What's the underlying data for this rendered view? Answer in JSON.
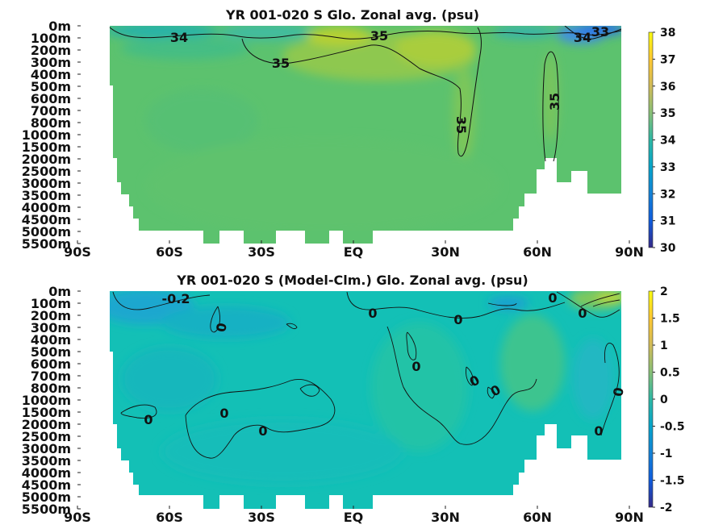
{
  "chart_data": [
    {
      "type": "heatmap",
      "title": "YR 001-020 S Glo. Zonal avg. (psu)",
      "x_ticks": [
        "90S",
        "60S",
        "30S",
        "EQ",
        "30N",
        "60N",
        "90N"
      ],
      "x_range": [
        -90,
        90
      ],
      "y_ticks": [
        "0m",
        "100m",
        "200m",
        "300m",
        "400m",
        "500m",
        "600m",
        "700m",
        "800m",
        "1000m",
        "1500m",
        "2000m",
        "2500m",
        "3000m",
        "3500m",
        "4000m",
        "4500m",
        "5000m",
        "5500m"
      ],
      "colorbar": {
        "ticks": [
          "30",
          "31",
          "32",
          "33",
          "34",
          "35",
          "36",
          "37",
          "38"
        ],
        "range": [
          30,
          38
        ],
        "colormap": "parula"
      },
      "contour_labels": [
        "34",
        "35",
        "35",
        "35",
        "35",
        "34",
        "33"
      ],
      "colors": {
        "background": "#5cc26e",
        "fresh_surface": "#19a5c9",
        "salty_core": "#9fcc44",
        "max_salinity": "#b6d033",
        "land": "#ffffff"
      }
    },
    {
      "type": "heatmap",
      "title": "YR 001-020 S (Model-Clm.) Glo. Zonal avg. (psu)",
      "x_ticks": [
        "90S",
        "60S",
        "30S",
        "EQ",
        "30N",
        "60N",
        "90N"
      ],
      "x_range": [
        -90,
        90
      ],
      "y_ticks": [
        "0m",
        "100m",
        "200m",
        "300m",
        "400m",
        "500m",
        "600m",
        "700m",
        "800m",
        "1000m",
        "1500m",
        "2000m",
        "2500m",
        "3000m",
        "3500m",
        "4000m",
        "4500m",
        "5000m",
        "5500m"
      ],
      "colorbar": {
        "ticks": [
          "-2",
          "-1.5",
          "-1",
          "-0.5",
          "0",
          "0.5",
          "1",
          "1.5",
          "2"
        ],
        "range": [
          -2,
          2
        ],
        "colormap": "parula"
      },
      "contour_labels": [
        "-0.2",
        "0",
        "0",
        "0",
        "0",
        "0",
        "0",
        "0",
        "0",
        "0",
        "0",
        "0",
        "0",
        "0",
        "0"
      ],
      "colors": {
        "background": "#13c0b6",
        "negative_anomaly": "#1ea7cf",
        "positive_anomaly": "#3cc48f",
        "high_anomaly": "#b7d43a",
        "land": "#ffffff"
      }
    }
  ]
}
